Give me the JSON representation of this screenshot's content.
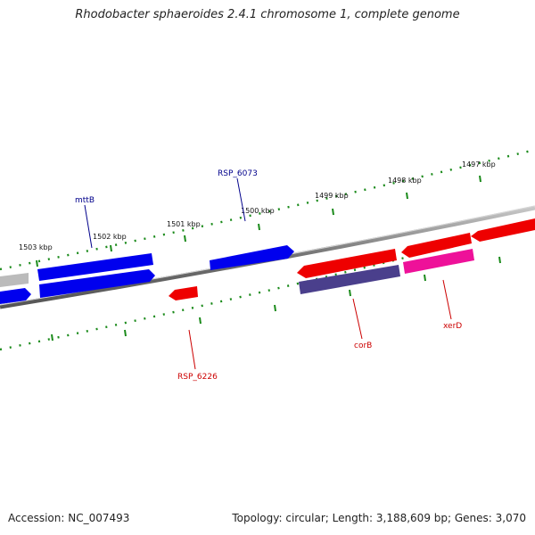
{
  "title": "Rhodobacter sphaeroides 2.4.1 chromosome 1, complete genome",
  "footer": {
    "accession": "Accession: NC_007493",
    "summary": "Topology: circular; Length: 3,188,609 bp; Genes: 3,070"
  },
  "scale_labels": [
    "1503 kbp",
    "1502 kbp",
    "1501 kbp",
    "1500 kbp",
    "1499 kbp",
    "1498 kbp",
    "1497 kbp"
  ],
  "gene_labels": {
    "mttB": "mttB",
    "RSP_6073": "RSP_6073",
    "RSP_6226": "RSP_6226",
    "corB": "corB",
    "xerD": "xerD"
  },
  "colors": {
    "forward_gene": "#0000ee",
    "reverse_gene": "#ee0000",
    "gray_gene": "#bbbbbb",
    "corB_gene": "#4a3f8c",
    "xerD_gene": "#ee1199",
    "tick_marks": "#1a8a1a",
    "backbone": "#808080",
    "forward_label": "#00008b",
    "reverse_label": "#cc0000"
  }
}
